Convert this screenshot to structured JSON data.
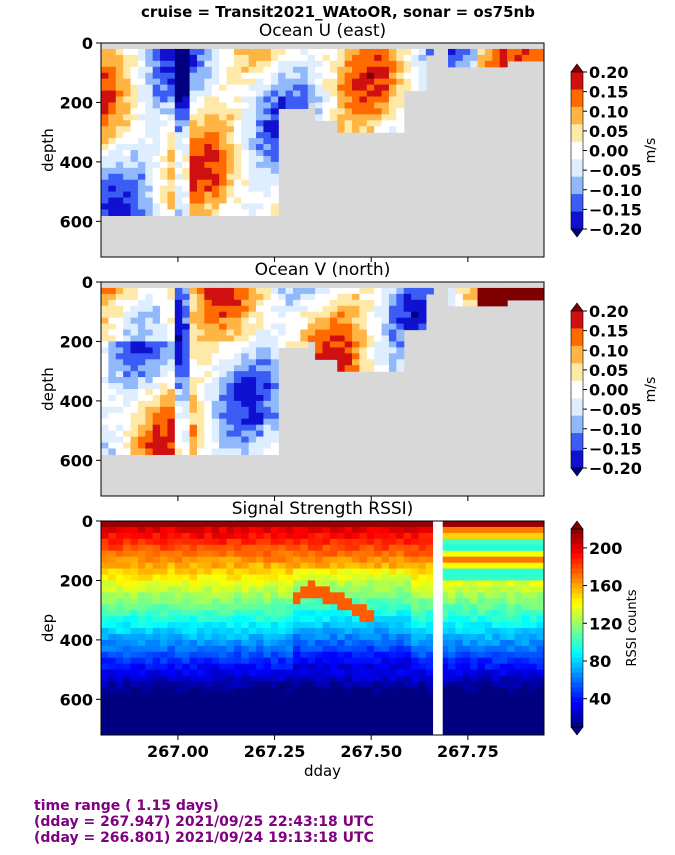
{
  "figure": {
    "suptitle": "cruise = Transit2021_WAtoOR,  sonar = os75nb",
    "colors": {
      "land_gray": "#d8d8d8",
      "footer_text": "#800080"
    }
  },
  "footer": {
    "line1": "time range ( 1.15 days)",
    "line2": "(dday = 267.947) 2021/09/25 22:43:18 UTC",
    "line3": "(dday = 266.801) 2021/09/24 19:13:18 UTC"
  },
  "chart_data": [
    {
      "type": "heatmap",
      "title": "Ocean U (east)",
      "ylabel": "depth",
      "xlabel": "",
      "xlim": [
        266.801,
        267.947
      ],
      "ylim": [
        720,
        0
      ],
      "yticks": [
        "0",
        "200",
        "400",
        "600"
      ],
      "yticks_values": [
        0,
        200,
        400,
        600
      ],
      "colorbar": {
        "label": "m/s",
        "ticks": [
          "0.20",
          "0.15",
          "0.10",
          "0.05",
          "0.00",
          "−0.05",
          "−0.10",
          "−0.15",
          "−0.20"
        ],
        "levels": [
          0.2,
          0.15,
          0.1,
          0.05,
          0.0,
          -0.05,
          -0.1,
          -0.15,
          -0.2
        ],
        "colors": [
          "#7f0000",
          "#d01010",
          "#ff6a00",
          "#ffb443",
          "#ffe9a8",
          "#ffffff",
          "#dfeefe",
          "#90b8fa",
          "#3b5cf5",
          "#1010d0",
          "#000080"
        ]
      }
    },
    {
      "type": "heatmap",
      "title": "Ocean V (north)",
      "ylabel": "depth",
      "xlabel": "",
      "xlim": [
        266.801,
        267.947
      ],
      "ylim": [
        720,
        0
      ],
      "yticks": [
        "0",
        "200",
        "400",
        "600"
      ],
      "yticks_values": [
        0,
        200,
        400,
        600
      ],
      "colorbar": {
        "label": "m/s",
        "ticks": [
          "0.20",
          "0.15",
          "0.10",
          "0.05",
          "0.00",
          "−0.05",
          "−0.10",
          "−0.15",
          "−0.20"
        ],
        "levels": [
          0.2,
          0.15,
          0.1,
          0.05,
          0.0,
          -0.05,
          -0.1,
          -0.15,
          -0.2
        ],
        "colors": [
          "#7f0000",
          "#d01010",
          "#ff6a00",
          "#ffb443",
          "#ffe9a8",
          "#ffffff",
          "#dfeefe",
          "#90b8fa",
          "#3b5cf5",
          "#1010d0",
          "#000080"
        ]
      }
    },
    {
      "type": "heatmap",
      "title": "Signal Strength RSSI)",
      "ylabel": "dep",
      "xlabel": "dday",
      "xlim": [
        266.801,
        267.947
      ],
      "ylim": [
        720,
        0
      ],
      "yticks": [
        "0",
        "200",
        "400",
        "600"
      ],
      "yticks_values": [
        0,
        200,
        400,
        600
      ],
      "xticks": [
        "267.00",
        "267.25",
        "267.50",
        "267.75"
      ],
      "xticks_values": [
        267.0,
        267.25,
        267.5,
        267.75
      ],
      "colorbar": {
        "label": "RSSI counts",
        "ticks": [
          "200",
          "160",
          "120",
          "80",
          "40"
        ],
        "ticks_values": [
          200,
          160,
          120,
          80,
          40
        ],
        "range": [
          10,
          220
        ]
      }
    }
  ]
}
